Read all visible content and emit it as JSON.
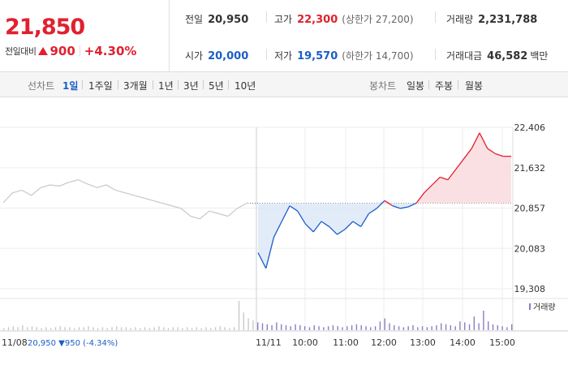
{
  "quote": {
    "price": "21,850",
    "change_label": "전일대비",
    "change_value": "900",
    "change_pct": "+4.30%"
  },
  "stats": {
    "prev_close_label": "전일",
    "prev_close": "20,950",
    "high_label": "고가",
    "high": "22,300",
    "upper_limit": "(상한가 27,200)",
    "volume_label": "거래량",
    "volume": "2,231,788",
    "open_label": "시가",
    "open": "20,000",
    "low_label": "저가",
    "low": "19,570",
    "lower_limit": "(하한가 14,700)",
    "amount_label": "거래대금",
    "amount": "46,582",
    "amount_unit": "백만"
  },
  "tabs": {
    "line_label": "선차트",
    "line": [
      "1일",
      "1주일",
      "3개월",
      "1년",
      "3년",
      "5년",
      "10년"
    ],
    "candle_label": "봉차트",
    "candle": [
      "일봉",
      "주봉",
      "월봉"
    ]
  },
  "colors": {
    "up": "#e0212f",
    "down": "#1a5ec6",
    "prev": "#c8c8c8",
    "volume": "#8e7cc3"
  },
  "chart_data": {
    "type": "line",
    "title": "",
    "y_ticks": [
      "22,406",
      "21,632",
      "20,857",
      "20,083",
      "19,308"
    ],
    "ylim": [
      19308,
      22406
    ],
    "baseline": 20950,
    "x_ticks": [
      "10:00",
      "11:00",
      "12:00",
      "13:00",
      "14:00",
      "15:00"
    ],
    "prev_day_label": "11/08",
    "today_label": "11/11",
    "prev_day_summary": "20,950 ▼950 (-4.34%)",
    "volume_label": "거래량",
    "series": [
      {
        "values": [
          20960,
          21150,
          21200,
          21100,
          21250,
          21300,
          21280,
          21350,
          21400,
          21320,
          21250,
          21300,
          21200,
          21150,
          21100,
          21050,
          21000,
          20950,
          20900,
          20850,
          20700,
          20650,
          20800,
          20750,
          20700,
          20850,
          20950
        ]
      },
      {
        "values": [
          20000,
          19700,
          20300,
          20600,
          20900,
          20800,
          20550,
          20400,
          20600,
          20500,
          20350,
          20450,
          20600,
          20500,
          20750,
          20850,
          21000,
          20900,
          20850,
          20880,
          20950,
          21150,
          21300,
          21450,
          21400,
          21600,
          21800,
          22000,
          22300,
          22000,
          21900,
          21850,
          21850
        ]
      }
    ],
    "volume": [
      2,
      3,
      4,
      3,
      5,
      3,
      4,
      3,
      2,
      3,
      2,
      3,
      4,
      3,
      3,
      2,
      3,
      3,
      4,
      3,
      2,
      3,
      2,
      3,
      4,
      3,
      3,
      2,
      3,
      2,
      3,
      2,
      3,
      4,
      3,
      2,
      3,
      3,
      2,
      3,
      2,
      3,
      2,
      3,
      2,
      3,
      4,
      3,
      2,
      3,
      30,
      18,
      12,
      10,
      8,
      7,
      6,
      5,
      8,
      6,
      5,
      4,
      6,
      5,
      4,
      3,
      5,
      4,
      3,
      4,
      5,
      4,
      3,
      4,
      5,
      6,
      5,
      4,
      3,
      4,
      9,
      12,
      7,
      5,
      4,
      3,
      4,
      5,
      3,
      4,
      3,
      4,
      5,
      7,
      6,
      5,
      4,
      9,
      8,
      6,
      14,
      7,
      20,
      9,
      6,
      5,
      4,
      3,
      6
    ]
  }
}
